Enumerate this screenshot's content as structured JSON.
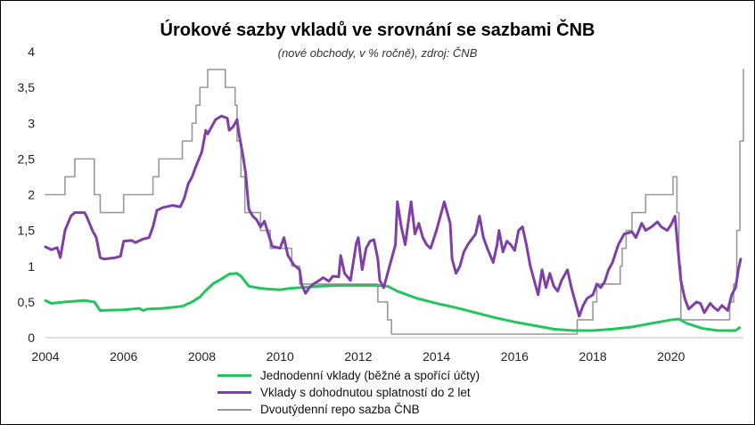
{
  "chart_data": {
    "type": "line",
    "title": "Úrokové sazby vkladů ve srovnání se sazbami ČNB",
    "subtitle": "(nové obchody, v % ročně), zdroj: ČNB",
    "xlabel": "",
    "ylabel": "",
    "xlim": [
      2004.0,
      2021.85
    ],
    "ylim": [
      0,
      4
    ],
    "x_ticks": [
      "2004",
      "2006",
      "2008",
      "2010",
      "2012",
      "2014",
      "2016",
      "2018",
      "2020"
    ],
    "x_tick_values": [
      2004,
      2006,
      2008,
      2010,
      2012,
      2014,
      2016,
      2018,
      2020
    ],
    "y_ticks": [
      "0",
      "0,5",
      "1",
      "1,5",
      "2",
      "2,5",
      "3",
      "3,5",
      "4"
    ],
    "y_tick_values": [
      0,
      0.5,
      1,
      1.5,
      2,
      2.5,
      3,
      3.5,
      4
    ],
    "grid": false,
    "legend_position": "bottom",
    "series": [
      {
        "name": "Jednodenní vklady (běžné a spořící účty)",
        "color": "#22c55e",
        "style": "line",
        "points": [
          [
            2004.0,
            0.52
          ],
          [
            2004.15,
            0.48
          ],
          [
            2004.5,
            0.5
          ],
          [
            2005.0,
            0.52
          ],
          [
            2005.25,
            0.5
          ],
          [
            2005.4,
            0.38
          ],
          [
            2006.0,
            0.39
          ],
          [
            2006.4,
            0.41
          ],
          [
            2006.5,
            0.38
          ],
          [
            2006.6,
            0.4
          ],
          [
            2007.0,
            0.41
          ],
          [
            2007.5,
            0.44
          ],
          [
            2007.75,
            0.5
          ],
          [
            2007.95,
            0.57
          ],
          [
            2008.1,
            0.66
          ],
          [
            2008.3,
            0.76
          ],
          [
            2008.5,
            0.82
          ],
          [
            2008.7,
            0.89
          ],
          [
            2008.9,
            0.9
          ],
          [
            2009.0,
            0.86
          ],
          [
            2009.2,
            0.72
          ],
          [
            2009.5,
            0.69
          ],
          [
            2009.7,
            0.68
          ],
          [
            2010.0,
            0.67
          ],
          [
            2010.25,
            0.69
          ],
          [
            2010.5,
            0.7
          ],
          [
            2011.0,
            0.72
          ],
          [
            2011.5,
            0.73
          ],
          [
            2012.0,
            0.73
          ],
          [
            2012.5,
            0.73
          ],
          [
            2012.75,
            0.72
          ],
          [
            2013.0,
            0.65
          ],
          [
            2013.5,
            0.55
          ],
          [
            2014.0,
            0.48
          ],
          [
            2014.5,
            0.42
          ],
          [
            2015.0,
            0.35
          ],
          [
            2015.5,
            0.28
          ],
          [
            2016.0,
            0.22
          ],
          [
            2016.5,
            0.17
          ],
          [
            2017.0,
            0.12
          ],
          [
            2017.5,
            0.1
          ],
          [
            2018.0,
            0.1
          ],
          [
            2018.5,
            0.12
          ],
          [
            2019.0,
            0.15
          ],
          [
            2019.5,
            0.2
          ],
          [
            2020.0,
            0.25
          ],
          [
            2020.2,
            0.26
          ],
          [
            2020.4,
            0.2
          ],
          [
            2020.8,
            0.13
          ],
          [
            2021.2,
            0.1
          ],
          [
            2021.65,
            0.1
          ],
          [
            2021.75,
            0.14
          ]
        ]
      },
      {
        "name": "Vklady s dohodnutou splatností do 2 let",
        "color": "#7e3fa8",
        "style": "line",
        "points": [
          [
            2004.0,
            1.27
          ],
          [
            2004.15,
            1.23
          ],
          [
            2004.3,
            1.26
          ],
          [
            2004.38,
            1.12
          ],
          [
            2004.5,
            1.5
          ],
          [
            2004.65,
            1.7
          ],
          [
            2004.75,
            1.75
          ],
          [
            2005.0,
            1.75
          ],
          [
            2005.05,
            1.7
          ],
          [
            2005.2,
            1.5
          ],
          [
            2005.3,
            1.4
          ],
          [
            2005.4,
            1.12
          ],
          [
            2005.5,
            1.1
          ],
          [
            2005.8,
            1.12
          ],
          [
            2005.92,
            1.14
          ],
          [
            2006.0,
            1.35
          ],
          [
            2006.2,
            1.36
          ],
          [
            2006.3,
            1.33
          ],
          [
            2006.5,
            1.38
          ],
          [
            2006.65,
            1.4
          ],
          [
            2006.75,
            1.55
          ],
          [
            2006.85,
            1.78
          ],
          [
            2007.0,
            1.82
          ],
          [
            2007.25,
            1.85
          ],
          [
            2007.45,
            1.83
          ],
          [
            2007.55,
            1.95
          ],
          [
            2007.65,
            2.15
          ],
          [
            2007.75,
            2.25
          ],
          [
            2007.85,
            2.4
          ],
          [
            2008.0,
            2.6
          ],
          [
            2008.1,
            2.9
          ],
          [
            2008.15,
            2.85
          ],
          [
            2008.25,
            2.95
          ],
          [
            2008.35,
            3.05
          ],
          [
            2008.5,
            3.1
          ],
          [
            2008.65,
            3.07
          ],
          [
            2008.7,
            2.9
          ],
          [
            2008.8,
            2.95
          ],
          [
            2008.9,
            3.05
          ],
          [
            2008.95,
            2.85
          ],
          [
            2009.05,
            2.55
          ],
          [
            2009.12,
            2.3
          ],
          [
            2009.2,
            1.8
          ],
          [
            2009.3,
            1.7
          ],
          [
            2009.4,
            1.65
          ],
          [
            2009.5,
            1.55
          ],
          [
            2009.6,
            1.63
          ],
          [
            2009.7,
            1.45
          ],
          [
            2009.8,
            1.28
          ],
          [
            2010.0,
            1.25
          ],
          [
            2010.1,
            1.4
          ],
          [
            2010.2,
            1.15
          ],
          [
            2010.35,
            1.02
          ],
          [
            2010.5,
            0.95
          ],
          [
            2010.55,
            0.75
          ],
          [
            2010.65,
            0.62
          ],
          [
            2010.75,
            0.7
          ],
          [
            2010.85,
            0.75
          ],
          [
            2011.0,
            0.8
          ],
          [
            2011.1,
            0.84
          ],
          [
            2011.25,
            0.79
          ],
          [
            2011.35,
            0.86
          ],
          [
            2011.5,
            0.85
          ],
          [
            2011.55,
            1.15
          ],
          [
            2011.65,
            0.9
          ],
          [
            2011.8,
            0.8
          ],
          [
            2011.95,
            1.32
          ],
          [
            2012.0,
            1.4
          ],
          [
            2012.1,
            0.95
          ],
          [
            2012.2,
            1.25
          ],
          [
            2012.3,
            1.35
          ],
          [
            2012.4,
            1.37
          ],
          [
            2012.5,
            1.1
          ],
          [
            2012.55,
            0.8
          ],
          [
            2012.65,
            0.7
          ],
          [
            2012.75,
            0.9
          ],
          [
            2012.95,
            1.3
          ],
          [
            2013.0,
            1.9
          ],
          [
            2013.1,
            1.55
          ],
          [
            2013.2,
            1.3
          ],
          [
            2013.35,
            1.9
          ],
          [
            2013.45,
            1.45
          ],
          [
            2013.55,
            1.6
          ],
          [
            2013.65,
            1.4
          ],
          [
            2013.75,
            1.3
          ],
          [
            2013.85,
            1.25
          ],
          [
            2014.0,
            1.5
          ],
          [
            2014.15,
            1.8
          ],
          [
            2014.2,
            1.9
          ],
          [
            2014.35,
            1.6
          ],
          [
            2014.4,
            1.1
          ],
          [
            2014.5,
            0.9
          ],
          [
            2014.6,
            1.0
          ],
          [
            2014.7,
            1.2
          ],
          [
            2014.8,
            1.3
          ],
          [
            2015.0,
            1.45
          ],
          [
            2015.1,
            1.7
          ],
          [
            2015.2,
            1.4
          ],
          [
            2015.3,
            1.25
          ],
          [
            2015.45,
            1.05
          ],
          [
            2015.55,
            1.3
          ],
          [
            2015.6,
            1.5
          ],
          [
            2015.7,
            1.2
          ],
          [
            2015.8,
            1.35
          ],
          [
            2015.9,
            1.3
          ],
          [
            2016.0,
            1.22
          ],
          [
            2016.1,
            1.5
          ],
          [
            2016.2,
            1.55
          ],
          [
            2016.3,
            1.3
          ],
          [
            2016.4,
            1.0
          ],
          [
            2016.5,
            0.8
          ],
          [
            2016.6,
            0.6
          ],
          [
            2016.7,
            0.95
          ],
          [
            2016.8,
            0.7
          ],
          [
            2016.9,
            0.9
          ],
          [
            2017.0,
            0.72
          ],
          [
            2017.1,
            0.65
          ],
          [
            2017.2,
            0.8
          ],
          [
            2017.35,
            0.95
          ],
          [
            2017.45,
            0.7
          ],
          [
            2017.55,
            0.5
          ],
          [
            2017.65,
            0.3
          ],
          [
            2017.75,
            0.45
          ],
          [
            2017.85,
            0.55
          ],
          [
            2018.0,
            0.6
          ],
          [
            2018.1,
            0.75
          ],
          [
            2018.2,
            0.7
          ],
          [
            2018.3,
            0.78
          ],
          [
            2018.4,
            0.95
          ],
          [
            2018.5,
            1.05
          ],
          [
            2018.65,
            1.3
          ],
          [
            2018.8,
            1.45
          ],
          [
            2019.0,
            1.48
          ],
          [
            2019.1,
            1.4
          ],
          [
            2019.25,
            1.6
          ],
          [
            2019.35,
            1.5
          ],
          [
            2019.5,
            1.55
          ],
          [
            2019.65,
            1.62
          ],
          [
            2019.75,
            1.55
          ],
          [
            2019.9,
            1.5
          ],
          [
            2020.0,
            1.58
          ],
          [
            2020.1,
            1.7
          ],
          [
            2020.15,
            1.4
          ],
          [
            2020.25,
            0.8
          ],
          [
            2020.35,
            0.55
          ],
          [
            2020.45,
            0.4
          ],
          [
            2020.55,
            0.45
          ],
          [
            2020.65,
            0.5
          ],
          [
            2020.75,
            0.48
          ],
          [
            2020.85,
            0.35
          ],
          [
            2021.0,
            0.48
          ],
          [
            2021.1,
            0.42
          ],
          [
            2021.2,
            0.38
          ],
          [
            2021.3,
            0.45
          ],
          [
            2021.45,
            0.38
          ],
          [
            2021.55,
            0.6
          ],
          [
            2021.65,
            0.7
          ],
          [
            2021.72,
            0.95
          ],
          [
            2021.78,
            1.1
          ]
        ]
      },
      {
        "name": "Dvoutýdenní repo sazba ČNB",
        "color": "#999999",
        "style": "step",
        "points": [
          [
            2004.0,
            2.0
          ],
          [
            2004.5,
            2.25
          ],
          [
            2004.75,
            2.5
          ],
          [
            2005.25,
            2.0
          ],
          [
            2005.4,
            1.75
          ],
          [
            2006.0,
            2.0
          ],
          [
            2006.75,
            2.25
          ],
          [
            2006.9,
            2.5
          ],
          [
            2007.5,
            2.75
          ],
          [
            2007.75,
            3.0
          ],
          [
            2007.85,
            3.25
          ],
          [
            2007.95,
            3.5
          ],
          [
            2008.15,
            3.75
          ],
          [
            2008.6,
            3.5
          ],
          [
            2008.85,
            3.25
          ],
          [
            2008.9,
            2.75
          ],
          [
            2009.0,
            2.25
          ],
          [
            2009.1,
            1.75
          ],
          [
            2009.5,
            1.5
          ],
          [
            2009.75,
            1.25
          ],
          [
            2010.3,
            1.0
          ],
          [
            2010.5,
            0.75
          ],
          [
            2012.5,
            0.5
          ],
          [
            2012.75,
            0.25
          ],
          [
            2012.85,
            0.05
          ],
          [
            2017.6,
            0.25
          ],
          [
            2018.0,
            0.5
          ],
          [
            2018.1,
            0.75
          ],
          [
            2018.7,
            1.0
          ],
          [
            2018.75,
            1.25
          ],
          [
            2018.85,
            1.5
          ],
          [
            2019.0,
            1.75
          ],
          [
            2019.35,
            2.0
          ],
          [
            2020.05,
            2.25
          ],
          [
            2020.15,
            1.75
          ],
          [
            2020.2,
            1.0
          ],
          [
            2020.25,
            0.25
          ],
          [
            2021.5,
            0.5
          ],
          [
            2021.6,
            0.75
          ],
          [
            2021.68,
            1.5
          ],
          [
            2021.76,
            2.75
          ],
          [
            2021.85,
            3.75
          ]
        ]
      }
    ]
  }
}
